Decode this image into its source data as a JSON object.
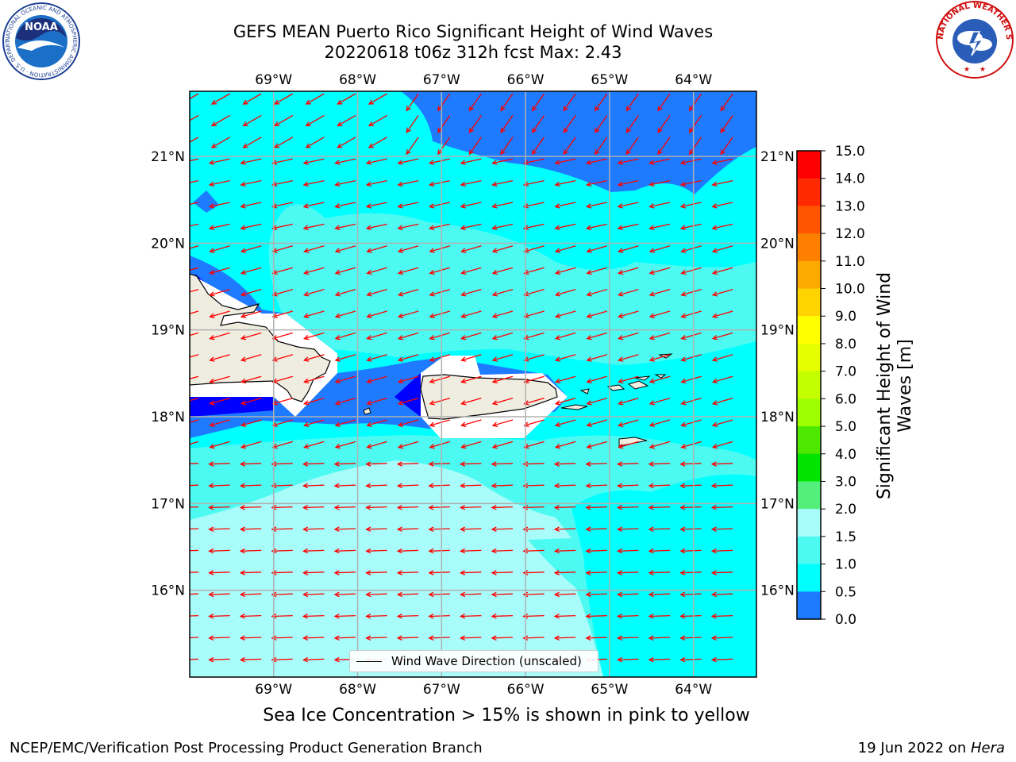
{
  "header": {
    "title_line1": "GEFS MEAN Puerto Rico Significant Height of Wind Waves",
    "title_line2": "20220618 t06z 312h fcst   Max: 2.43"
  },
  "logos": {
    "left": "NOAA",
    "left_ring": "NATIONAL OCEANIC AND ATMOSPHERIC ADMINISTRATION · U.S. DEPARTMENT OF COMMERCE",
    "right_ring": "NATIONAL WEATHER SERVICE"
  },
  "map": {
    "lon_labels": [
      "69°W",
      "68°W",
      "67°W",
      "66°W",
      "65°W",
      "64°W"
    ],
    "lat_labels": [
      "21°N",
      "20°N",
      "19°N",
      "18°N",
      "17°N",
      "16°N"
    ],
    "lon_values": [
      -69,
      -68,
      -67,
      -66,
      -65,
      -64
    ],
    "lat_values": [
      21,
      20,
      19,
      18,
      17,
      16
    ],
    "extent": {
      "lon_min": -70,
      "lon_max": -63.25,
      "lat_min": 15,
      "lat_max": 21.75
    },
    "region_colors": {
      "0.0-0.5": "#0000ff",
      "0.5-1.0": "#1e7bff",
      "1.0-1.5": "#00ffff",
      "1.5-2.0": "#4dfaf2",
      "2.0-3.0": "#a8fdfb"
    },
    "land_color": "#efede0",
    "arrow_color": "#ff0000",
    "legend_label": "Wind Wave Direction (unscaled)"
  },
  "colorbar": {
    "label": "Significant Height of Wind Waves [m]",
    "ticks": [
      "15.0",
      "14.0",
      "13.0",
      "12.0",
      "11.0",
      "10.0",
      "9.0",
      "8.0",
      "7.0",
      "6.0",
      "5.0",
      "4.0",
      "3.0",
      "2.0",
      "1.5",
      "1.0",
      "0.5",
      "0.0"
    ],
    "colors": [
      "#ff0000",
      "#ff2a00",
      "#ff5500",
      "#ff7f00",
      "#ffaa00",
      "#ffd400",
      "#ffff00",
      "#e5ff00",
      "#c3ff00",
      "#9dff00",
      "#4ee800",
      "#00e400",
      "#52f07a",
      "#a8fdfb",
      "#4dfaf2",
      "#00ffff",
      "#1e7bff",
      "#0000ff"
    ]
  },
  "caption": "Sea Ice Concentration > 15% is shown in pink to yellow",
  "footer": {
    "left": "NCEP/EMC/Verification Post Processing Product Generation Branch",
    "right_date": "19 Jun 2022 on ",
    "right_host": "Hera"
  }
}
